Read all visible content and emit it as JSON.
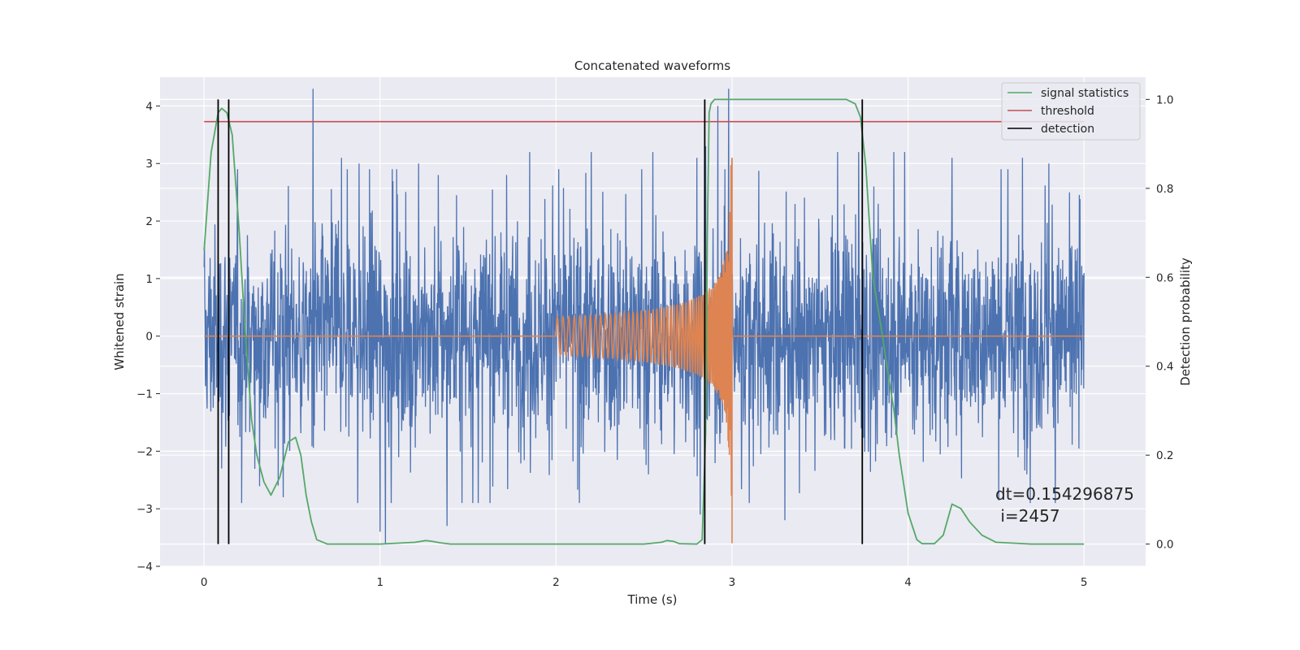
{
  "chart_data": {
    "type": "line",
    "title": "Concatenated waveforms",
    "xlabel": "Time (s)",
    "ylabel_left": "Whitened strain",
    "ylabel_right": "Detection probability",
    "xlim": [
      -0.25,
      5.35
    ],
    "ylim_left": [
      -4,
      4.5
    ],
    "ylim_right": [
      -0.05,
      1.05
    ],
    "x_ticks": [
      0,
      1,
      2,
      3,
      4,
      5
    ],
    "x_tick_labels": [
      "0",
      "1",
      "2",
      "3",
      "4",
      "5"
    ],
    "y_left_ticks": [
      -4,
      -3,
      -2,
      -1,
      0,
      1,
      2,
      3,
      4
    ],
    "y_left_tick_labels": [
      "−4",
      "−3",
      "−2",
      "−1",
      "0",
      "1",
      "2",
      "3",
      "4"
    ],
    "y_right_ticks": [
      0.0,
      0.2,
      0.4,
      0.6,
      0.8,
      1.0
    ],
    "y_right_tick_labels": [
      "0.0",
      "0.2",
      "0.4",
      "0.6",
      "0.8",
      "1.0"
    ],
    "grid": true,
    "legend_position": "top-right",
    "series": [
      {
        "name": "",
        "kind": "noise",
        "axis": "left",
        "color": "#4c72b0",
        "x_range": [
          0,
          5
        ],
        "typical_range": [
          -1.7,
          1.7
        ],
        "peaks": [
          {
            "x": 0.62,
            "y": 4.3
          },
          {
            "x": 0.78,
            "y": 3.1
          },
          {
            "x": 0.88,
            "y": 3.0
          },
          {
            "x": 0.94,
            "y": 2.9
          },
          {
            "x": 1.0,
            "y": -3.4
          },
          {
            "x": 1.03,
            "y": -3.6
          },
          {
            "x": 1.07,
            "y": 2.9
          },
          {
            "x": 1.22,
            "y": 3.0
          },
          {
            "x": 1.33,
            "y": 2.8
          },
          {
            "x": 1.38,
            "y": -3.3
          },
          {
            "x": 1.72,
            "y": 2.8
          },
          {
            "x": 1.85,
            "y": 3.2
          },
          {
            "x": 2.2,
            "y": 3.2
          },
          {
            "x": 2.55,
            "y": 3.2
          },
          {
            "x": 2.8,
            "y": 3.1
          },
          {
            "x": 2.85,
            "y": 3.3
          },
          {
            "x": 2.92,
            "y": 4.0
          },
          {
            "x": 2.98,
            "y": 4.3
          },
          {
            "x": 3.3,
            "y": 3.3
          },
          {
            "x": 3.6,
            "y": 3.2
          },
          {
            "x": 3.72,
            "y": 3.2
          },
          {
            "x": 3.92,
            "y": 3.2
          },
          {
            "x": 3.98,
            "y": 3.2
          },
          {
            "x": 4.25,
            "y": 3.1
          },
          {
            "x": 4.65,
            "y": 3.1
          },
          {
            "x": 4.8,
            "y": 3.0
          },
          {
            "x": 3.3,
            "y": -3.2
          },
          {
            "x": 2.82,
            "y": -3.1
          },
          {
            "x": 0.1,
            "y": -2.3
          },
          {
            "x": 0.45,
            "y": -2.8
          }
        ]
      },
      {
        "name": "",
        "kind": "chirp",
        "axis": "left",
        "color": "#dd8452",
        "x_range": [
          0,
          5
        ],
        "chirp_start": 2.0,
        "merger_time": 3.0,
        "start_amplitude": 0.33,
        "merger_amplitude": 3.1
      },
      {
        "name": "signal statistics",
        "axis": "right",
        "color": "#55a868",
        "x": [
          0.0,
          0.04,
          0.08,
          0.1,
          0.13,
          0.16,
          0.2,
          0.23,
          0.27,
          0.3,
          0.34,
          0.38,
          0.43,
          0.48,
          0.52,
          0.55,
          0.58,
          0.61,
          0.64,
          0.7,
          1.0,
          1.2,
          1.26,
          1.3,
          1.34,
          1.4,
          2.0,
          2.5,
          2.6,
          2.63,
          2.67,
          2.7,
          2.8,
          2.83,
          2.85,
          2.86,
          2.87,
          2.88,
          2.9,
          3.0,
          3.5,
          3.65,
          3.7,
          3.73,
          3.76,
          3.8,
          3.85,
          3.88,
          3.92,
          3.95,
          4.0,
          4.05,
          4.08,
          4.15,
          4.2,
          4.25,
          4.3,
          4.35,
          4.42,
          4.5,
          4.7,
          5.0
        ],
        "y": [
          0.66,
          0.88,
          0.97,
          0.98,
          0.97,
          0.92,
          0.7,
          0.5,
          0.28,
          0.2,
          0.14,
          0.11,
          0.15,
          0.23,
          0.24,
          0.2,
          0.11,
          0.05,
          0.01,
          0.0,
          0.0,
          0.004,
          0.008,
          0.006,
          0.003,
          0.0,
          0.0,
          0.0,
          0.004,
          0.008,
          0.006,
          0.001,
          0.0,
          0.01,
          0.25,
          0.7,
          0.97,
          0.99,
          1.0,
          1.0,
          1.0,
          1.0,
          0.99,
          0.96,
          0.85,
          0.6,
          0.48,
          0.4,
          0.3,
          0.2,
          0.07,
          0.01,
          0.001,
          0.001,
          0.02,
          0.09,
          0.08,
          0.05,
          0.02,
          0.004,
          0.0,
          0.0
        ]
      },
      {
        "name": "threshold",
        "axis": "right",
        "color": "#c44e52",
        "x": [
          0,
          5
        ],
        "y": [
          0.95,
          0.95
        ]
      },
      {
        "name": "detection",
        "axis": "right",
        "color": "#000000",
        "vlines": [
          0.08,
          0.14,
          2.845,
          3.74
        ],
        "y_span": [
          0.0,
          1.0
        ]
      }
    ],
    "annotations": [
      {
        "text": "dt=0.154296875",
        "x": 4.5,
        "y": 0.11,
        "axis": "right"
      },
      {
        "text": " i=2457",
        "x": 4.5,
        "y": 0.065,
        "axis": "right"
      }
    ]
  }
}
